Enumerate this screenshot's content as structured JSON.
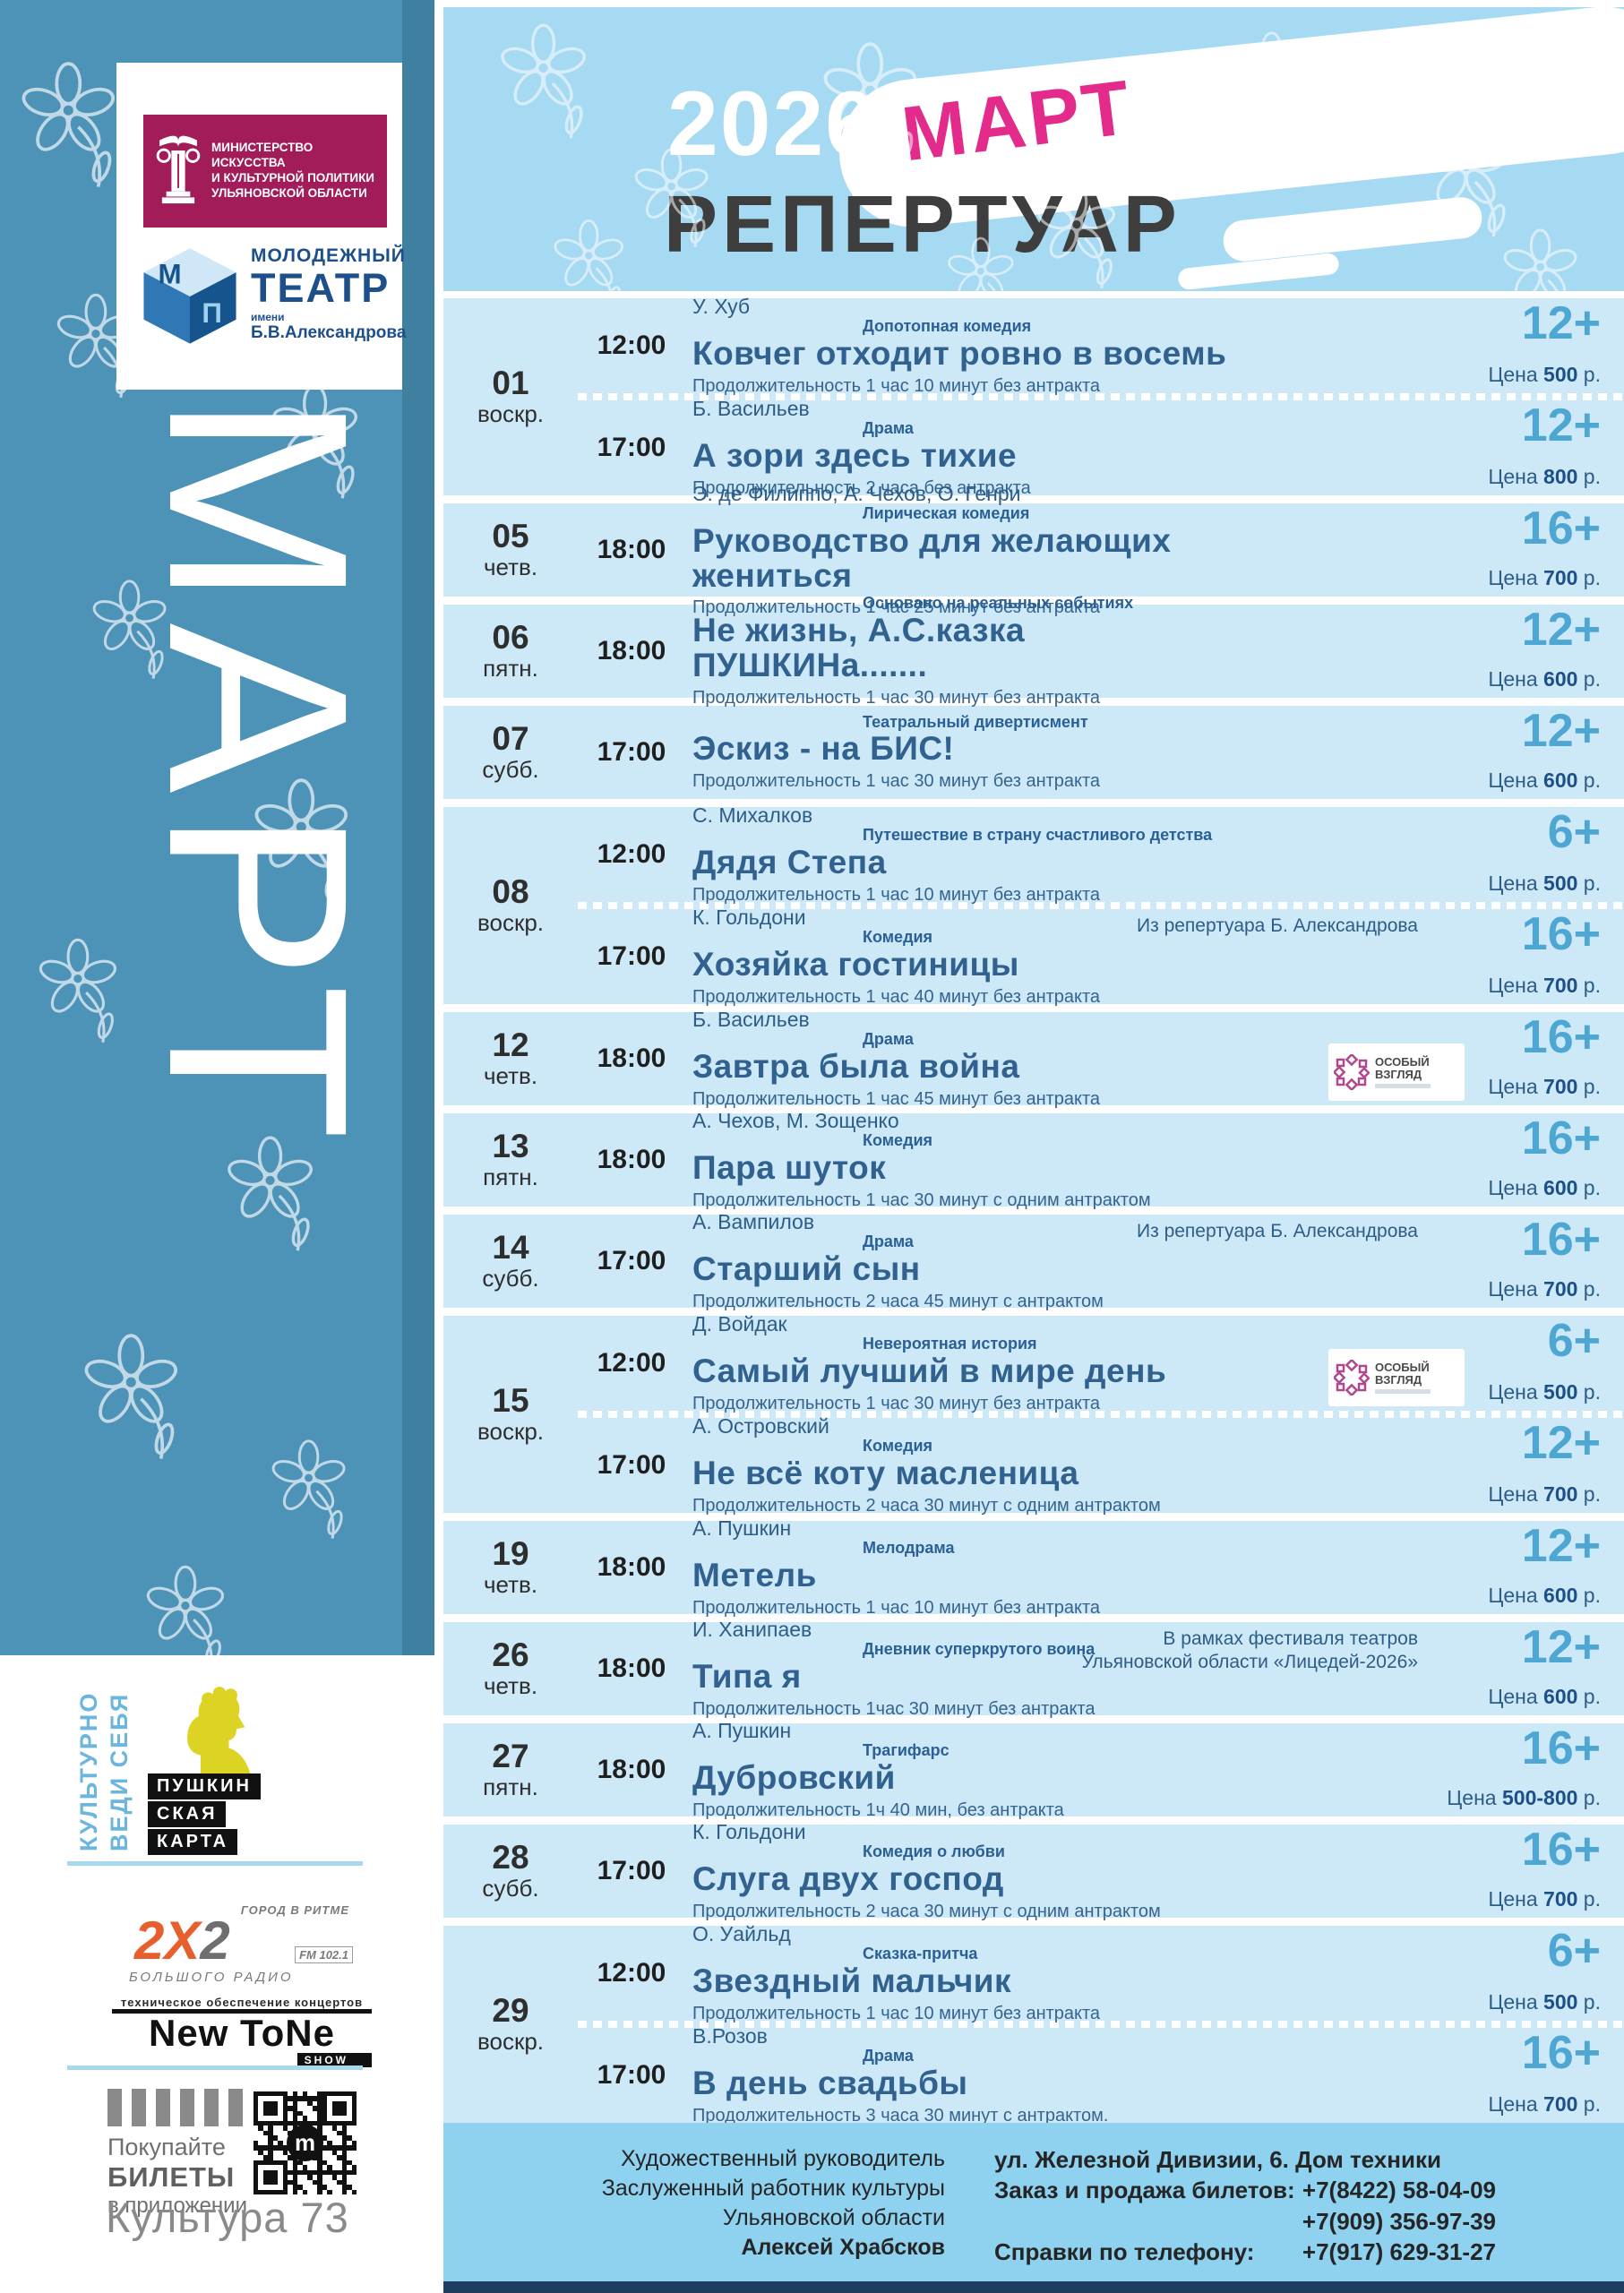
{
  "header": {
    "year": "2026",
    "month": "МАРТ",
    "title": "РЕПЕРТУАР"
  },
  "theme": {
    "sidebar_blue": "#4d93b8",
    "header_blue": "#a6d9f2",
    "row_blue": "#cde9f8",
    "footer_blue": "#8ed2f0",
    "accent_magenta": "#e22b8a",
    "title_blue": "#30618f",
    "age_blue": "#4ea6d2",
    "ministry_crimson": "#a21c5a",
    "radio_orange": "#e65f2d"
  },
  "sidebar": {
    "month_vertical": "МАРТ",
    "ministry": {
      "lines": [
        "МИНИСТЕРСТВО ИСКУССТВА",
        "И КУЛЬТУРНОЙ ПОЛИТИКИ",
        "УЛЬЯНОВСКОЙ ОБЛАСТИ"
      ]
    },
    "theater": {
      "cube_letters": [
        "М",
        "П"
      ],
      "lines": [
        "МОЛОДЕЖНЫЙ",
        "ТЕАТР",
        "имени",
        "Б.В.Александрова"
      ]
    },
    "pushkin": {
      "motto_lines": [
        "ВЕДИ СЕБЯ",
        "КУЛЬТУРНО"
      ],
      "card_lines": [
        "ПУШКИН",
        "СКАЯ",
        "КАРТА"
      ]
    },
    "radio": {
      "tagline": "ГОРОД В РИТМЕ",
      "name_parts": [
        "2",
        "Х",
        "2"
      ],
      "fm": "FM 102.1",
      "sub": "БОЛЬШОГО РАДИО"
    },
    "newtone": {
      "tagline": "техническое обеспечение концертов",
      "name": "New ToNe",
      "show": "SHOW"
    },
    "tickets": {
      "line1": "Покупайте",
      "line2": "БИЛЕТЫ",
      "line3": "в приложении",
      "qr_logo": "m",
      "app": "Культура 73"
    }
  },
  "badge": {
    "line1": "ОСОБЫЙ",
    "line2": "ВЗГЛЯД"
  },
  "schedule": [
    {
      "date": "01",
      "day": "воскр.",
      "shows": [
        {
          "time": "12:00",
          "author": "У. Хуб",
          "genre": "Допотопная комедия",
          "title": "Ковчег отходит ровно в восемь",
          "duration": "Продолжительность 1 час 10 минут без антракта",
          "age": "12+",
          "price": "500"
        },
        {
          "time": "17:00",
          "author": "Б. Васильев",
          "genre": "Драма",
          "title": "А зори здесь тихие",
          "duration": "Продолжительность 2 часа без антракта",
          "age": "12+",
          "price": "800"
        }
      ]
    },
    {
      "date": "05",
      "day": "четв.",
      "shows": [
        {
          "time": "18:00",
          "author": "Э. де Филиппо, А. Чехов, О. Генри",
          "genre": "Лирическая комедия",
          "title": "Руководство для желающих жениться",
          "duration": "Продолжительность 1 час 25 минут без антракта",
          "age": "16+",
          "price": "700"
        }
      ]
    },
    {
      "date": "06",
      "day": "пятн.",
      "shows": [
        {
          "time": "18:00",
          "author": "",
          "genre": "Основано на реальных событиях",
          "title": "Не жизнь, А.С.казка ПУШКИНа.......",
          "duration": "Продолжительность 1 час 30 минут без антракта",
          "age": "12+",
          "price": "600"
        }
      ]
    },
    {
      "date": "07",
      "day": "субб.",
      "shows": [
        {
          "time": "17:00",
          "author": "",
          "genre": "Театральный дивертисмент",
          "title": "Эскиз - на БИС!",
          "duration": "Продолжительность 1 час 30 минут без антракта",
          "age": "12+",
          "price": "600"
        }
      ]
    },
    {
      "date": "08",
      "day": "воскр.",
      "shows": [
        {
          "time": "12:00",
          "author": "С. Михалков",
          "genre": "Путешествие в страну счастливого детства",
          "title": "Дядя Степа",
          "duration": "Продолжительность 1 час 10 минут без антракта",
          "age": "6+",
          "price": "500"
        },
        {
          "time": "17:00",
          "author": "К. Гольдони",
          "genre": "Комедия",
          "title": "Хозяйка гостиницы",
          "duration": "Продолжительность 1 час 40 минут без антракта",
          "age": "16+",
          "price": "700",
          "note": [
            "Из репертуара Б. Александрова"
          ]
        }
      ]
    },
    {
      "date": "12",
      "day": "четв.",
      "shows": [
        {
          "time": "18:00",
          "author": "Б. Васильев",
          "genre": "Драма",
          "title": "Завтра была война",
          "duration": "Продолжительность 1 час 45 минут без антракта",
          "age": "16+",
          "price": "700",
          "badge": true
        }
      ]
    },
    {
      "date": "13",
      "day": "пятн.",
      "shows": [
        {
          "time": "18:00",
          "author": "А. Чехов, М. Зощенко",
          "genre": "Комедия",
          "title": "Пара шуток",
          "duration": "Продолжительность 1 час 30 минут с одним антрактом",
          "age": "16+",
          "price": "600"
        }
      ]
    },
    {
      "date": "14",
      "day": "субб.",
      "shows": [
        {
          "time": "17:00",
          "author": "А. Вампилов",
          "genre": "Драма",
          "title": "Старший сын",
          "duration": "Продолжительность 2 часа 45 минут с антрактом",
          "age": "16+",
          "price": "700",
          "note": [
            "Из репертуара Б. Александрова"
          ]
        }
      ]
    },
    {
      "date": "15",
      "day": "воскр.",
      "shows": [
        {
          "time": "12:00",
          "author": "Д. Войдак",
          "genre": "Невероятная история",
          "title": "Самый лучший в мире день",
          "duration": "Продолжительность 1 час 30 минут без антракта",
          "age": "6+",
          "price": "500",
          "badge": true
        },
        {
          "time": "17:00",
          "author": "А. Островский",
          "genre": "Комедия",
          "title": "Не всё коту масленица",
          "duration": "Продолжительность 2 часа 30 минут с одним антрактом",
          "age": "12+",
          "price": "700"
        }
      ]
    },
    {
      "date": "19",
      "day": "четв.",
      "shows": [
        {
          "time": "18:00",
          "author": "А. Пушкин",
          "genre": "Мелодрама",
          "title": "Метель",
          "duration": "Продолжительность 1 час 10 минут без антракта",
          "age": "12+",
          "price": "600"
        }
      ]
    },
    {
      "date": "26",
      "day": "четв.",
      "shows": [
        {
          "time": "18:00",
          "author": "И. Ханипаев",
          "genre": "Дневник суперкрутого воина",
          "title": "Типа я",
          "duration": "Продолжительность 1час 30 минут без антракта",
          "age": "12+",
          "price": "600",
          "note": [
            "В рамках фестиваля театров",
            "Ульяновской области «Лицедей-2026»"
          ]
        }
      ]
    },
    {
      "date": "27",
      "day": "пятн.",
      "shows": [
        {
          "time": "18:00",
          "author": "А. Пушкин",
          "genre": "Трагифарс",
          "title": "Дубровский",
          "duration": "Продолжительность 1ч 40 мин, без антракта",
          "age": "16+",
          "price": "500-800"
        }
      ]
    },
    {
      "date": "28",
      "day": "субб.",
      "shows": [
        {
          "time": "17:00",
          "author": "К. Гольдони",
          "genre": "Комедия о любви",
          "title": "Слуга двух господ",
          "duration": "Продолжительность 2 часа 30 минут с одним антрактом",
          "age": "16+",
          "price": "700"
        }
      ]
    },
    {
      "date": "29",
      "day": "воскр.",
      "shows": [
        {
          "time": "12:00",
          "author": "О. Уайльд",
          "genre": "Сказка-притча",
          "title": "Звездный мальчик",
          "duration": "Продолжительность 1 час 10 минут без антракта",
          "age": "6+",
          "price": "500"
        },
        {
          "time": "17:00",
          "author": "В.Розов",
          "genre": "Драма",
          "title": "В день свадьбы",
          "duration": "Продолжительность 3 часа 30 минут с антрактом.",
          "age": "16+",
          "price": "700"
        }
      ]
    }
  ],
  "price_labels": {
    "prefix": "Цена",
    "suffix": "р."
  },
  "footer": {
    "director_lines": [
      "Художественный руководитель",
      "Заслуженный работник культуры",
      "Ульяновской области",
      "Алексей Храбсков"
    ],
    "address": "ул. Железной Дивизии, 6. Дом техники",
    "tickets_label": "Заказ и продажа билетов:",
    "phone1": "+7(8422) 58-04-09",
    "phone2": "+7(909) 356-97-39",
    "info_label": "Справки по телефону:",
    "phone3": "+7(917) 629-31-27"
  }
}
